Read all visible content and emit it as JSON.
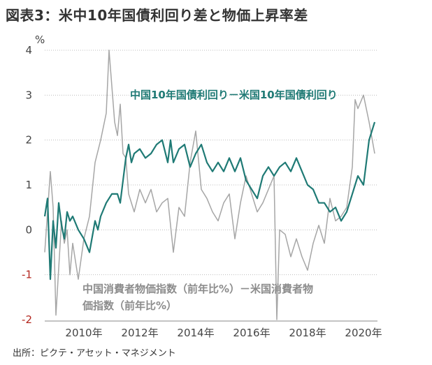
{
  "title": "図表3：米中10年国債利回り差と物価上昇率差",
  "source": "出所：ピクテ・アセット・マネジメント",
  "colors": {
    "yield_spread": "#1f7a75",
    "cpi_spread": "#a6a6a6",
    "negative_tick": "#b3261e",
    "grid": "#bdbdbd"
  },
  "chart_data": {
    "type": "line",
    "ylabel": "%",
    "ylim": [
      -2,
      4
    ],
    "yticks": [
      4,
      3,
      2,
      1,
      0,
      -1,
      -2
    ],
    "xlim": [
      2009.0,
      2020.9
    ],
    "xticks": [
      {
        "x": 2010,
        "label": "2010年"
      },
      {
        "x": 2012,
        "label": "2012年"
      },
      {
        "x": 2014,
        "label": "2014年"
      },
      {
        "x": 2016,
        "label": "2016年"
      },
      {
        "x": 2018,
        "label": "2018年"
      },
      {
        "x": 2020,
        "label": "2020年"
      }
    ],
    "grid": true,
    "series": [
      {
        "name": "中国10年国債利回り－米国10年国債利回り",
        "label_lines": [
          "中国10年国債利回り－米国10年国債利回り"
        ],
        "x": [
          2009.0,
          2009.1,
          2009.2,
          2009.3,
          2009.4,
          2009.5,
          2009.6,
          2009.7,
          2009.8,
          2009.9,
          2010.0,
          2010.2,
          2010.4,
          2010.6,
          2010.8,
          2010.9,
          2011.0,
          2011.2,
          2011.4,
          2011.6,
          2011.7,
          2011.8,
          2011.9,
          2012.0,
          2012.1,
          2012.2,
          2012.4,
          2012.6,
          2012.8,
          2013.0,
          2013.2,
          2013.4,
          2013.5,
          2013.6,
          2013.8,
          2014.0,
          2014.2,
          2014.4,
          2014.6,
          2014.8,
          2015.0,
          2015.2,
          2015.4,
          2015.6,
          2015.8,
          2016.0,
          2016.2,
          2016.4,
          2016.6,
          2016.8,
          2017.0,
          2017.2,
          2017.4,
          2017.6,
          2017.8,
          2018.0,
          2018.2,
          2018.4,
          2018.6,
          2018.8,
          2019.0,
          2019.2,
          2019.4,
          2019.6,
          2019.8,
          2020.0,
          2020.2,
          2020.4,
          2020.6,
          2020.8
        ],
        "y": [
          0.3,
          0.7,
          -1.1,
          0.2,
          -0.4,
          0.6,
          0.1,
          -0.2,
          0.4,
          0.2,
          0.3,
          0.0,
          -0.2,
          -0.5,
          0.2,
          0.0,
          0.3,
          0.6,
          0.8,
          0.8,
          0.6,
          1.1,
          1.6,
          1.9,
          1.5,
          1.7,
          1.8,
          1.6,
          1.7,
          1.9,
          2.0,
          1.5,
          2.0,
          1.5,
          1.8,
          1.9,
          1.4,
          1.7,
          1.9,
          1.5,
          1.3,
          1.5,
          1.3,
          1.6,
          1.3,
          1.6,
          1.1,
          0.9,
          0.7,
          1.2,
          1.4,
          1.2,
          1.4,
          1.5,
          1.3,
          1.6,
          1.3,
          1.0,
          0.9,
          0.6,
          0.6,
          0.4,
          0.5,
          0.2,
          0.4,
          0.8,
          1.2,
          1.0,
          2.0,
          2.4
        ]
      },
      {
        "name": "中国消費者物価指数（前年比%）－米国消費者物価指数（前年比%）",
        "label_lines": [
          "中国消費者物価指数（前年比%）－米国消費者物",
          "価指数（前年比%）"
        ],
        "x": [
          2009.0,
          2009.1,
          2009.2,
          2009.3,
          2009.4,
          2009.6,
          2009.7,
          2009.8,
          2009.9,
          2010.0,
          2010.2,
          2010.4,
          2010.6,
          2010.8,
          2011.0,
          2011.2,
          2011.3,
          2011.4,
          2011.5,
          2011.6,
          2011.7,
          2011.8,
          2011.9,
          2012.0,
          2012.2,
          2012.4,
          2012.6,
          2012.8,
          2013.0,
          2013.2,
          2013.4,
          2013.6,
          2013.8,
          2014.0,
          2014.2,
          2014.4,
          2014.6,
          2014.8,
          2015.0,
          2015.2,
          2015.4,
          2015.6,
          2015.8,
          2016.0,
          2016.2,
          2016.4,
          2016.6,
          2016.8,
          2017.0,
          2017.2,
          2017.3,
          2017.4,
          2017.6,
          2017.8,
          2018.0,
          2018.2,
          2018.4,
          2018.6,
          2018.8,
          2019.0,
          2019.2,
          2019.4,
          2019.6,
          2019.8,
          2020.0,
          2020.1,
          2020.2,
          2020.4,
          2020.6,
          2020.8
        ],
        "y": [
          -0.5,
          0.4,
          1.3,
          0.5,
          -1.9,
          0.2,
          -0.3,
          0.0,
          -1.0,
          -0.3,
          -1.1,
          -0.2,
          0.3,
          1.5,
          2.0,
          2.6,
          4.0,
          3.2,
          2.4,
          2.1,
          2.8,
          1.7,
          1.6,
          0.8,
          0.4,
          0.9,
          0.6,
          0.9,
          0.4,
          0.6,
          0.7,
          -0.5,
          0.5,
          0.3,
          1.5,
          2.2,
          0.9,
          0.7,
          0.4,
          0.2,
          0.6,
          0.8,
          -0.2,
          0.6,
          1.2,
          0.8,
          0.4,
          0.6,
          0.9,
          1.2,
          -2.0,
          0.0,
          -0.1,
          -0.6,
          -0.2,
          -0.6,
          -0.9,
          -0.3,
          0.1,
          -0.3,
          0.7,
          0.2,
          0.3,
          0.5,
          1.4,
          2.9,
          2.7,
          3.0,
          2.4,
          1.7
        ]
      }
    ]
  }
}
